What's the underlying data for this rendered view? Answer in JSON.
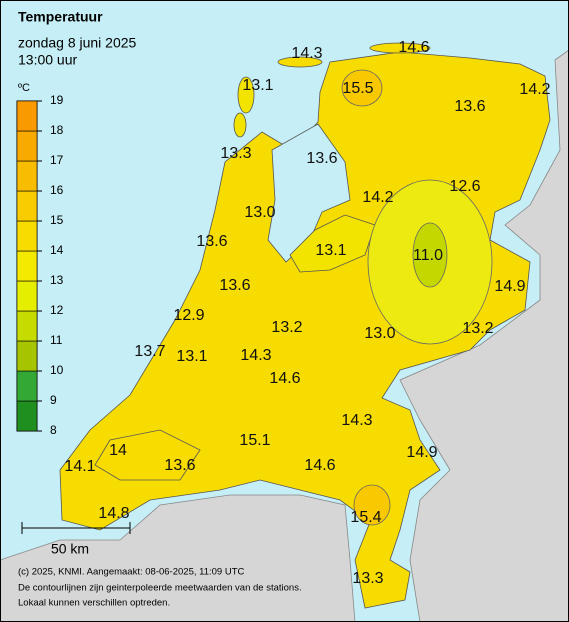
{
  "title": "Temperatuur",
  "date": "zondag 8 juni 2025",
  "time": "13:00 uur",
  "legend": {
    "unit": "ºC",
    "ticks": [
      8,
      9,
      10,
      11,
      12,
      13,
      14,
      15,
      16,
      17,
      18,
      19
    ],
    "colors": [
      "#1f8f1f",
      "#34a834",
      "#a6c400",
      "#c6dc00",
      "#e6ee00",
      "#f4ea00",
      "#f8dc00",
      "#f8cc00",
      "#f8bc00",
      "#f8aa00",
      "#f89a00"
    ]
  },
  "stations": [
    14.3,
    14.6,
    13.1,
    15.5,
    14.2,
    13.6,
    13.3,
    13.6,
    14.2,
    12.6,
    {
      "value": 13,
      "label": "13.0"
    },
    13.6,
    13.1,
    {
      "value": 11,
      "label": "11.0"
    },
    14.9,
    13.6,
    12.9,
    13.2,
    {
      "value": 13,
      "label": "13.0"
    },
    13.2,
    13.7,
    13.1,
    14.3,
    14.6,
    14.3,
    15.1,
    14.0,
    14.9,
    14.1,
    13.6,
    14.6,
    15.4,
    14.8,
    13.3
  ],
  "scale": "50 km",
  "footer": [
    "(c) 2025, KNMI. Aangemaakt: 08-06-2025, 11:09 UTC",
    "De contourlijnen zijn geinterpoleerde meetwaarden van de stations.",
    "Lokaal kunnen verschillen optreden."
  ]
}
